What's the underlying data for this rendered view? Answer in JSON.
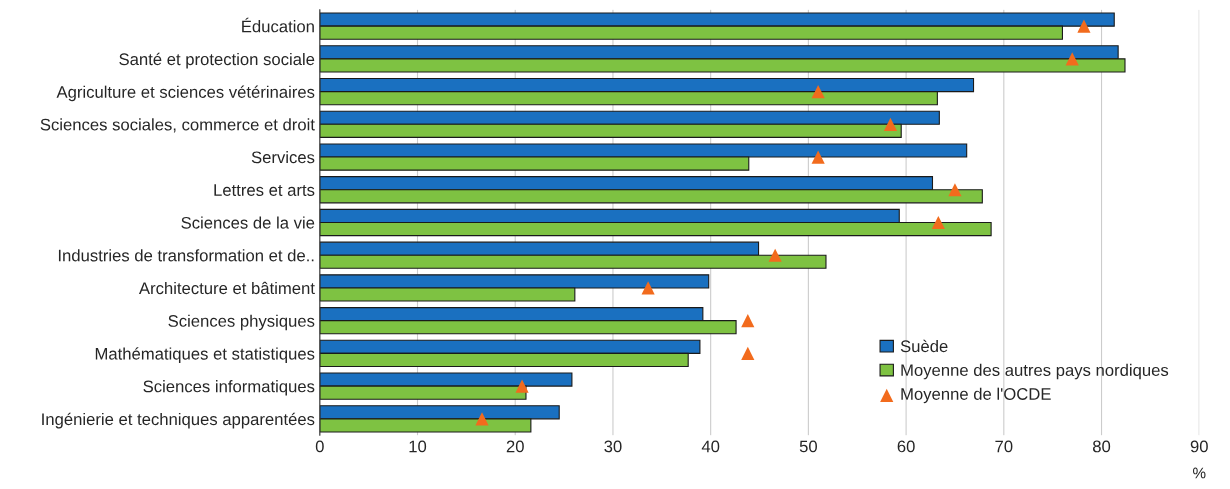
{
  "chart_data": {
    "type": "bar",
    "orientation": "horizontal",
    "xlabel": "%",
    "categories": [
      "Éducation",
      "Santé et protection sociale",
      "Agriculture et sciences vétérinaires",
      "Sciences sociales, commerce et droit",
      "Services",
      "Lettres et arts",
      "Sciences de la vie",
      "Industries de transformation et de..",
      "Architecture et bâtiment",
      "Sciences physiques",
      "Mathématiques et statistiques",
      "Sciences informatiques",
      "Ingénierie et techniques apparentées"
    ],
    "series": [
      {
        "name": "Suède",
        "color": "#1a70c0",
        "values": [
          81.3,
          81.7,
          66.9,
          63.4,
          66.2,
          62.7,
          59.3,
          44.9,
          39.8,
          39.2,
          38.9,
          25.8,
          24.5
        ]
      },
      {
        "name": "Moyenne des autres pays nordiques",
        "color": "#7ec242",
        "values": [
          76.0,
          82.4,
          63.2,
          59.5,
          43.9,
          67.8,
          68.7,
          51.8,
          26.1,
          42.6,
          37.7,
          21.1,
          21.6
        ]
      },
      {
        "name": "Moyenne de l'OCDE",
        "type": "scatter",
        "marker": "triangle",
        "color": "#f26b1d",
        "values": [
          78.2,
          77.0,
          51.0,
          58.4,
          51.0,
          65.0,
          63.3,
          46.6,
          33.6,
          43.8,
          43.8,
          20.7,
          16.6
        ]
      }
    ],
    "xlim": [
      0,
      90
    ],
    "xticks": [
      0,
      10,
      20,
      30,
      40,
      50,
      60,
      70,
      80,
      90
    ],
    "grid": "x",
    "legend": "bottom right"
  }
}
